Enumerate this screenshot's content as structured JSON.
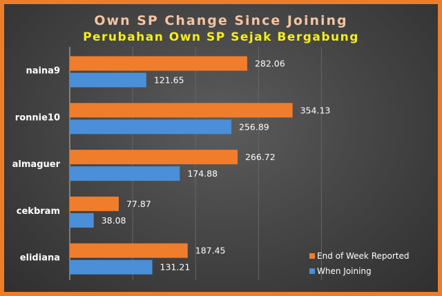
{
  "chart_data": {
    "type": "bar",
    "orientation": "horizontal",
    "title": "Own SP Change Since Joining",
    "subtitle": "Perubahan Own SP Sejak Bergabung",
    "categories": [
      "naina9",
      "ronnie10",
      "almaguer",
      "cekbram",
      "elidiana"
    ],
    "series": [
      {
        "name": "End of Week Reported",
        "color": "#f07d2c",
        "values": [
          282.06,
          354.13,
          266.72,
          77.87,
          187.45
        ]
      },
      {
        "name": "When Joining",
        "color": "#4a8fd8",
        "values": [
          121.65,
          256.89,
          174.88,
          38.08,
          131.21
        ]
      }
    ],
    "xlim": [
      0,
      400
    ],
    "grid": true,
    "legend_position": "bottom-right",
    "colors": {
      "frame": "#ee7d2a",
      "background": "#474747",
      "title": "#f6c4a0",
      "subtitle": "#f6ee1c",
      "gridline": "#666666"
    }
  }
}
